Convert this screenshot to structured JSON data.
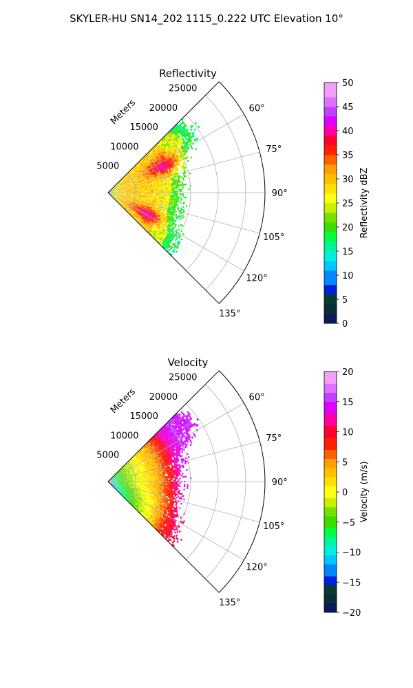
{
  "figure": {
    "suptitle": "SKYLER-HU  SN14_202  1115_0.222 UTC Elevation 10°"
  },
  "chart_data": [
    {
      "type": "heatmap",
      "subtype": "polar-sector-ppi",
      "title": "Reflectivity",
      "range_label": "Meters",
      "range_ticks": [
        5000,
        10000,
        15000,
        20000,
        25000
      ],
      "range_tick_labels": [
        "5000",
        "10000",
        "15000",
        "20000",
        "25000"
      ],
      "range_max": 28500,
      "azimuth_range_deg": [
        45,
        135
      ],
      "azimuth_ticks_deg": [
        60,
        75,
        90,
        105,
        120,
        135
      ],
      "azimuth_tick_labels": [
        "60°",
        "75°",
        "90°",
        "105°",
        "120°",
        "135°"
      ],
      "grid": true,
      "colorbar": {
        "label": "Reflectivity dBZ",
        "min": 0,
        "max": 50,
        "ticks": [
          0,
          5,
          10,
          15,
          20,
          25,
          30,
          35,
          40,
          45,
          50
        ],
        "tick_labels": [
          "0",
          "5",
          "10",
          "15",
          "20",
          "25",
          "30",
          "35",
          "40",
          "45",
          "50"
        ],
        "color_stops": [
          [
            0,
            "#0b1a5a"
          ],
          [
            2,
            "#0a2d3a"
          ],
          [
            4,
            "#0a3a30"
          ],
          [
            6,
            "#0020d8"
          ],
          [
            8,
            "#0088ff"
          ],
          [
            11,
            "#00c8ff"
          ],
          [
            13,
            "#00f0e0"
          ],
          [
            15,
            "#00f59a"
          ],
          [
            17,
            "#00ff40"
          ],
          [
            19,
            "#3cdc00"
          ],
          [
            21,
            "#78e000"
          ],
          [
            23,
            "#c8f000"
          ],
          [
            25,
            "#ffff10"
          ],
          [
            27,
            "#ffe000"
          ],
          [
            29,
            "#ffc000"
          ],
          [
            31,
            "#ffa000"
          ],
          [
            33,
            "#ff6000"
          ],
          [
            35,
            "#ff2000"
          ],
          [
            37,
            "#ff0030"
          ],
          [
            39,
            "#ff00a0"
          ],
          [
            41,
            "#e000ff"
          ],
          [
            43,
            "#c040ff"
          ],
          [
            45,
            "#e070ff"
          ],
          [
            47,
            "#f0a0f8"
          ],
          [
            50,
            "#fff0ff"
          ]
        ]
      },
      "echo": {
        "near_value": 25,
        "mid_value": 29,
        "edge_value": 20,
        "outer_value": 15,
        "inner_radius_m": 1500,
        "outer_edge_range_m": {
          "north_45": 17500,
          "north_55": 18500,
          "az_70": 13500,
          "az_90": 12500,
          "az_110": 12500,
          "az_125": 14500,
          "south_135": 15000
        },
        "cores": [
          {
            "azimuth_deg": 65,
            "range_m": 11000,
            "peak": 41,
            "spread_deg": 9,
            "spread_m": 3500
          },
          {
            "azimuth_deg": 118,
            "range_m": 8000,
            "peak": 42,
            "spread_deg": 9,
            "spread_m": 3000
          },
          {
            "azimuth_deg": 90,
            "range_m": 7500,
            "peak": 29,
            "spread_deg": 20,
            "spread_m": 4000
          }
        ]
      }
    },
    {
      "type": "heatmap",
      "subtype": "polar-sector-ppi",
      "title": "Velocity",
      "range_label": "Meters",
      "range_ticks": [
        5000,
        10000,
        15000,
        20000,
        25000
      ],
      "range_tick_labels": [
        "5000",
        "10000",
        "15000",
        "20000",
        "25000"
      ],
      "range_max": 28500,
      "azimuth_range_deg": [
        45,
        135
      ],
      "azimuth_ticks_deg": [
        60,
        75,
        90,
        105,
        120,
        135
      ],
      "azimuth_tick_labels": [
        "60°",
        "75°",
        "90°",
        "105°",
        "120°",
        "135°"
      ],
      "grid": true,
      "colorbar": {
        "label": "Velocity (m/s)",
        "min": -20,
        "max": 20,
        "ticks": [
          -20,
          -15,
          -10,
          -5,
          0,
          5,
          10,
          15,
          20
        ],
        "tick_labels": [
          "−20",
          "−15",
          "−10",
          "−5",
          "0",
          "5",
          "10",
          "15",
          "20"
        ],
        "color_stops": [
          [
            -20,
            "#0b1a5a"
          ],
          [
            -18.5,
            "#0a2d3a"
          ],
          [
            -17,
            "#0a3a30"
          ],
          [
            -15.5,
            "#0020d8"
          ],
          [
            -14,
            "#0088ff"
          ],
          [
            -12,
            "#00c8ff"
          ],
          [
            -10.5,
            "#00f0e0"
          ],
          [
            -9,
            "#00f59a"
          ],
          [
            -7.5,
            "#00ff40"
          ],
          [
            -6,
            "#3cdc00"
          ],
          [
            -4,
            "#78e000"
          ],
          [
            -2.5,
            "#c8f000"
          ],
          [
            -1,
            "#ffff10"
          ],
          [
            1,
            "#ffe000"
          ],
          [
            2.5,
            "#ffc000"
          ],
          [
            4,
            "#ffa000"
          ],
          [
            5.5,
            "#ff6000"
          ],
          [
            7,
            "#ff2000"
          ],
          [
            9,
            "#ff0030"
          ],
          [
            11,
            "#ff00a0"
          ],
          [
            13,
            "#e000ff"
          ],
          [
            15,
            "#c040ff"
          ],
          [
            16.5,
            "#e070ff"
          ],
          [
            18,
            "#f0a0f8"
          ],
          [
            20,
            "#fff0ff"
          ]
        ]
      },
      "field": {
        "range_to_velocity": [
          [
            0,
            -10
          ],
          [
            3000,
            -4
          ],
          [
            6000,
            0
          ],
          [
            9000,
            4
          ],
          [
            11000,
            8
          ],
          [
            13000,
            13
          ],
          [
            15000,
            15
          ]
        ],
        "south_offset": -5,
        "outer_edge_range_m": {
          "north_45": 17500,
          "north_55": 18500,
          "az_70": 13500,
          "az_90": 12500,
          "az_110": 12500,
          "az_125": 14500,
          "south_135": 15000
        }
      }
    }
  ]
}
